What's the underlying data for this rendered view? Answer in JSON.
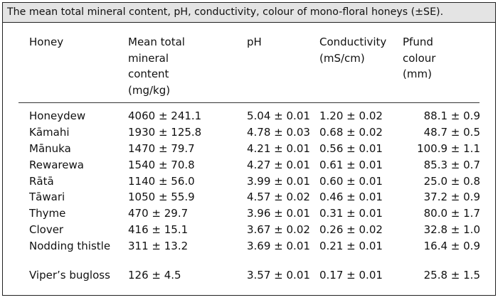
{
  "caption": "The mean total mineral content, pH, conductivity, colour of mono-floral honeys (±SE).",
  "headers": {
    "honey": "Honey",
    "mineral": [
      "Mean total",
      "mineral",
      "content",
      "(mg/kg)"
    ],
    "ph": "pH",
    "conductivity": [
      "Conductivity",
      "(mS/cm)"
    ],
    "pfund": [
      "Pfund",
      "colour",
      "(mm)"
    ]
  },
  "rows": [
    {
      "honey": "Honeydew",
      "mineral": "4060 ± 241.1",
      "ph": "5.04 ± 0.01",
      "conductivity": "1.20 ± 0.02",
      "pfund": "88.1 ± 0.9"
    },
    {
      "honey": "Kāmahi",
      "mineral": "1930 ± 125.8",
      "ph": "4.78 ± 0.03",
      "conductivity": "0.68 ± 0.02",
      "pfund": "48.7 ± 0.5"
    },
    {
      "honey": "Mānuka",
      "mineral": "1470 ± 79.7",
      "ph": "4.21 ± 0.01",
      "conductivity": "0.56 ± 0.01",
      "pfund": "100.9 ± 1.1"
    },
    {
      "honey": "Rewarewa",
      "mineral": "1540 ± 70.8",
      "ph": "4.27 ± 0.01",
      "conductivity": "0.61 ± 0.01",
      "pfund": "85.3 ± 0.7"
    },
    {
      "honey": "Rātā",
      "mineral": "1140 ± 56.0",
      "ph": "3.99 ± 0.01",
      "conductivity": "0.60 ± 0.01",
      "pfund": "25.0 ± 0.8"
    },
    {
      "honey": "Tāwari",
      "mineral": "1050 ± 55.9",
      "ph": "4.57 ± 0.02",
      "conductivity": "0.46 ± 0.01",
      "pfund": "37.2 ± 0.9"
    },
    {
      "honey": "Thyme",
      "mineral": "470 ± 29.7",
      "ph": "3.96 ± 0.01",
      "conductivity": "0.31 ± 0.01",
      "pfund": "80.0 ± 1.7"
    },
    {
      "honey": "Clover",
      "mineral": "416 ± 15.1",
      "ph": "3.67 ± 0.02",
      "conductivity": "0.26 ± 0.02",
      "pfund": "32.8 ± 1.0"
    },
    {
      "honey": "Nodding thistle",
      "mineral": "311 ± 13.2",
      "ph": "3.69 ± 0.01",
      "conductivity": "0.21 ± 0.01",
      "pfund": "16.4 ± 0.9"
    },
    {
      "honey": "Viper’s bugloss",
      "mineral": "126 ± 4.5",
      "ph": "3.57 ± 0.01",
      "conductivity": "0.17 ± 0.01",
      "pfund": "25.8 ± 1.5"
    }
  ]
}
